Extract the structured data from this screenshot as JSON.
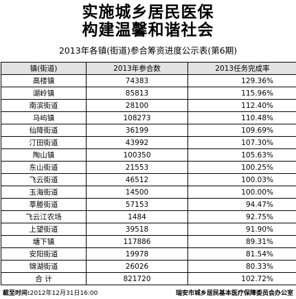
{
  "headline": {
    "line1": "实施城乡居民医保",
    "line2": "构建温馨和谐社会"
  },
  "subtitle": "2013年各镇(街道)参合筹资进度公示表(第6期)",
  "table": {
    "headers": [
      "镇(街道)",
      "2013年参合数",
      "2013任务完成率"
    ],
    "rows": [
      [
        "高楼镇",
        "74383",
        "129.36%"
      ],
      [
        "湖岭镇",
        "85813",
        "115.96%"
      ],
      [
        "南滨街道",
        "28100",
        "112.40%"
      ],
      [
        "马屿镇",
        "108273",
        "110.48%"
      ],
      [
        "仙降街道",
        "36199",
        "109.69%"
      ],
      [
        "汀田街道",
        "43992",
        "107.30%"
      ],
      [
        "陶山镇",
        "100350",
        "105.63%"
      ],
      [
        "东山街道",
        "21553",
        "100.25%"
      ],
      [
        "飞云街道",
        "46512",
        "100.03%"
      ],
      [
        "玉海街道",
        "14500",
        "100.00%"
      ],
      [
        "莘塍街道",
        "57153",
        "94.47%"
      ],
      [
        "飞云江农场",
        "1484",
        "92.75%"
      ],
      [
        "上望街道",
        "39518",
        "91.90%"
      ],
      [
        "塘下镇",
        "117886",
        "89.31%"
      ],
      [
        "安阳街道",
        "19978",
        "81.54%"
      ],
      [
        "锦湖街道",
        "26026",
        "80.33%"
      ]
    ],
    "total": [
      "合  计",
      "821720",
      "102.72%"
    ]
  },
  "footer": {
    "cutoff_label": "截至时间:",
    "cutoff_time": "2012年12月31日16:00",
    "issuer": "瑞安市城乡居民基本医疗保障委员会办公室"
  }
}
